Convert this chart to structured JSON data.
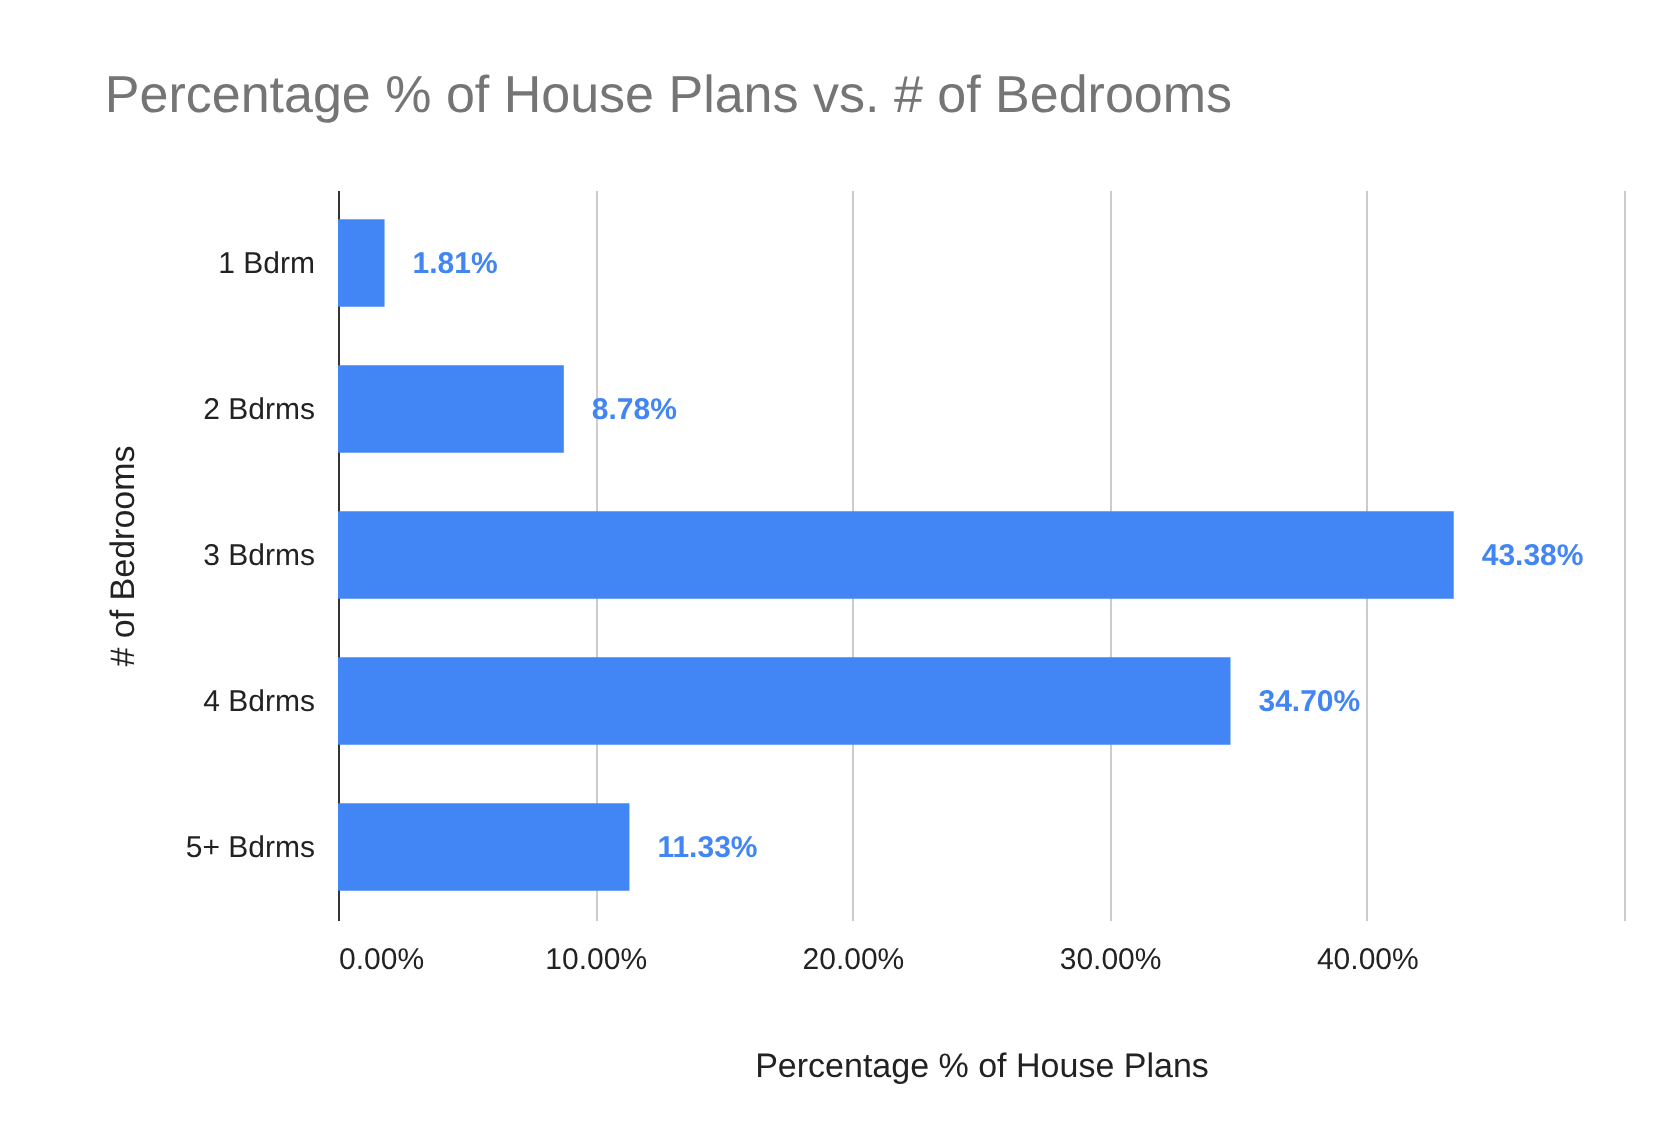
{
  "chart_data": {
    "type": "bar",
    "orientation": "horizontal",
    "title": "Percentage % of House Plans vs. # of Bedrooms",
    "xlabel": "Percentage % of House Plans",
    "ylabel": "# of Bedrooms",
    "categories": [
      "1 Bdrm",
      "2 Bdrms",
      "3 Bdrms",
      "4 Bdrms",
      "5+ Bdrms"
    ],
    "series": [
      {
        "color": "#4285f4",
        "values": [
          1.81,
          8.78,
          43.38,
          34.7,
          11.33
        ],
        "value_labels": [
          "1.81%",
          "8.78%",
          "43.38%",
          "34.70%",
          "11.33%"
        ]
      }
    ],
    "xlim": [
      0,
      50
    ],
    "xticks": [
      {
        "value": 0,
        "label": "0.00%"
      },
      {
        "value": 10,
        "label": "10.00%"
      },
      {
        "value": 20,
        "label": "20.00%"
      },
      {
        "value": 30,
        "label": "30.00%"
      },
      {
        "value": 40,
        "label": "40.00%"
      },
      {
        "value": 50,
        "label": null
      }
    ],
    "grid": "x"
  }
}
